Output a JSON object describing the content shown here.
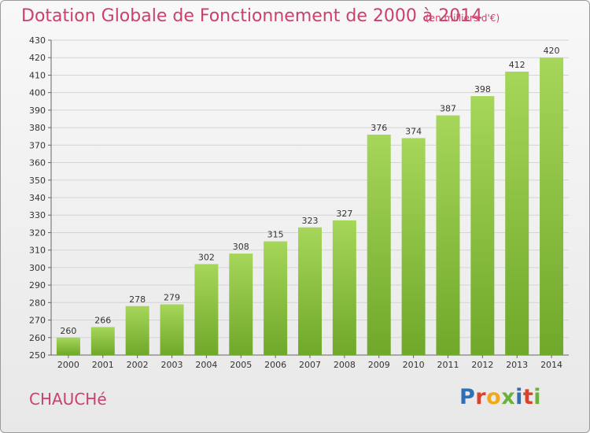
{
  "header": {
    "title": "Dotation Globale de Fonctionnement de 2000 à 2014",
    "unit_note": "(en milliers d'€)"
  },
  "footer": {
    "commune": "CHAUCHé",
    "logo_text": "Proxiti",
    "logo_colors": [
      "#2f6fb5",
      "#d8432b",
      "#f0a81c",
      "#6bb13a",
      "#2f6fb5",
      "#d8432b",
      "#6bb13a"
    ]
  },
  "colors": {
    "bar_light": "#a6d65a",
    "bar_dark": "#6fa82a",
    "title": "#c8426b",
    "grid": "#d4d4d4"
  },
  "chart_data": {
    "type": "bar",
    "title": "Dotation Globale de Fonctionnement de 2000 à 2014",
    "subtitle": "(en milliers d'€)",
    "categories": [
      "2000",
      "2001",
      "2002",
      "2003",
      "2004",
      "2005",
      "2006",
      "2007",
      "2008",
      "2009",
      "2010",
      "2011",
      "2012",
      "2013",
      "2014"
    ],
    "values": [
      260,
      266,
      278,
      279,
      302,
      308,
      315,
      323,
      327,
      376,
      374,
      387,
      398,
      412,
      420
    ],
    "ylim": [
      250,
      430
    ],
    "yticks": [
      250,
      260,
      270,
      280,
      290,
      300,
      310,
      320,
      330,
      340,
      350,
      360,
      370,
      380,
      390,
      400,
      410,
      420,
      430
    ],
    "grid": true,
    "xlabel": "",
    "ylabel": ""
  }
}
